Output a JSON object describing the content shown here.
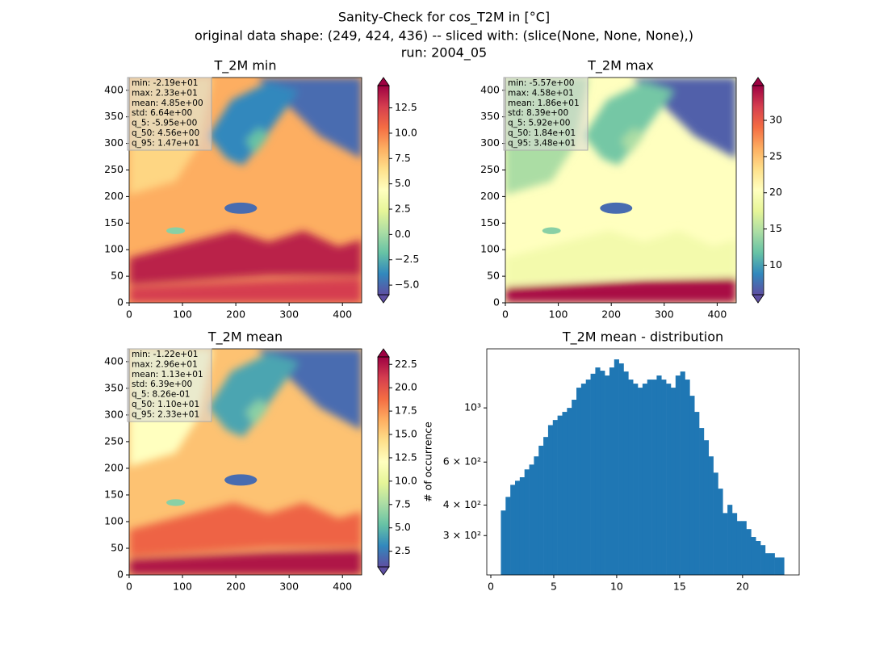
{
  "title": [
    "Sanity-Check for cos_T2M in [°C]",
    "original data shape: (249, 424, 436) -- sliced with: (slice(None, None, None),)",
    "run: 2004_05"
  ],
  "chart_data": [
    {
      "type": "heatmap",
      "title": "T_2M min",
      "cmap": "Spectral_r",
      "xlim": [
        0,
        436
      ],
      "ylim": [
        0,
        424
      ],
      "xticks": [
        0,
        100,
        200,
        300,
        400
      ],
      "yticks": [
        0,
        50,
        100,
        150,
        200,
        250,
        300,
        350,
        400
      ],
      "clim": [
        -5.95,
        14.7
      ],
      "cticks": [
        {
          "value": -5,
          "label": "−5.0"
        },
        {
          "value": -2.5,
          "label": "−2.5"
        },
        {
          "value": 0,
          "label": "0.0"
        },
        2.5,
        {
          "value": 5,
          "label": "5.0"
        },
        7.5,
        {
          "value": 10,
          "label": "10.0"
        },
        12.5
      ],
      "stats": [
        "min: -2.19e+01",
        "max: 2.33e+01",
        "mean: 4.85e+00",
        "std: 6.64e+00",
        "q_5: -5.95e+00",
        "q_50: 4.56e+00",
        "q_95: 1.47e+01"
      ]
    },
    {
      "type": "heatmap",
      "title": "T_2M max",
      "cmap": "Spectral_r",
      "xlim": [
        0,
        436
      ],
      "ylim": [
        0,
        424
      ],
      "xticks": [
        0,
        100,
        200,
        300,
        400
      ],
      "yticks": [
        0,
        50,
        100,
        150,
        200,
        250,
        300,
        350,
        400
      ],
      "clim": [
        5.92,
        34.8
      ],
      "cticks": [
        10,
        15,
        20,
        25,
        30
      ],
      "stats": [
        "min: -5.57e+00",
        "max: 4.58e+01",
        "mean: 1.86e+01",
        "std: 8.39e+00",
        "q_5: 5.92e+00",
        "q_50: 1.84e+01",
        "q_95: 3.48e+01"
      ]
    },
    {
      "type": "heatmap",
      "title": "T_2M mean",
      "cmap": "Spectral_r",
      "xlim": [
        0,
        436
      ],
      "ylim": [
        0,
        424
      ],
      "xticks": [
        0,
        100,
        200,
        300,
        400
      ],
      "yticks": [
        0,
        50,
        100,
        150,
        200,
        250,
        300,
        350,
        400
      ],
      "clim": [
        0.826,
        23.3
      ],
      "cticks": [
        2.5,
        {
          "value": 5,
          "label": "5.0"
        },
        7.5,
        {
          "value": 10,
          "label": "10.0"
        },
        12.5,
        {
          "value": 15,
          "label": "15.0"
        },
        17.5,
        {
          "value": 20,
          "label": "20.0"
        },
        22.5
      ],
      "stats": [
        "min: -1.22e+01",
        "max: 2.96e+01",
        "mean: 1.13e+01",
        "std: 6.39e+00",
        "q_5: 8.26e-01",
        "q_50: 1.10e+01",
        "q_95: 2.33e+01"
      ]
    },
    {
      "type": "histogram",
      "title": "T_2M mean - distribution",
      "ylabel": "# of occurrence",
      "color": "#1f77b4",
      "log_y": true,
      "xlim": [
        -0.32,
        24.5
      ],
      "xticks": [
        0,
        5,
        10,
        15,
        20
      ],
      "ylim": [
        207,
        1745
      ],
      "yticks": [
        {
          "value": 300,
          "label": "3 × 10²"
        },
        {
          "value": 400,
          "label": "4 × 10²"
        },
        {
          "value": 600,
          "label": "6 × 10²"
        },
        {
          "value": 1000,
          "label": "10³"
        }
      ],
      "bins": [
        0.8,
        1.175,
        1.55,
        1.925,
        2.3,
        2.675,
        3.05,
        3.425,
        3.8,
        4.175,
        4.55,
        4.925,
        5.3,
        5.675,
        6.05,
        6.425,
        6.8,
        7.175,
        7.55,
        7.925,
        8.3,
        8.675,
        9.05,
        9.425,
        9.8,
        10.175,
        10.55,
        10.925,
        11.3,
        11.675,
        12.05,
        12.425,
        12.8,
        13.175,
        13.55,
        13.925,
        14.3,
        14.675,
        15.05,
        15.425,
        15.8,
        16.175,
        16.55,
        16.925,
        17.3,
        17.675,
        18.05,
        18.425,
        18.8,
        19.175,
        19.55,
        19.925,
        20.3,
        20.675,
        21.05,
        21.425,
        21.8,
        22.175,
        22.55,
        22.925,
        23.3
      ],
      "values": [
        380,
        432,
        484,
        503,
        520,
        560,
        586,
        633,
        700,
        760,
        850,
        892,
        930,
        963,
        1000,
        1080,
        1210,
        1257,
        1306,
        1380,
        1464,
        1420,
        1357,
        1464,
        1580,
        1521,
        1409,
        1306,
        1257,
        1210,
        1257,
        1306,
        1306,
        1357,
        1306,
        1257,
        1210,
        1357,
        1409,
        1306,
        1121,
        963,
        827,
        737,
        633,
        543,
        467,
        371,
        401,
        371,
        344,
        344,
        319,
        296,
        285,
        274,
        254,
        254,
        244,
        244
      ]
    }
  ]
}
